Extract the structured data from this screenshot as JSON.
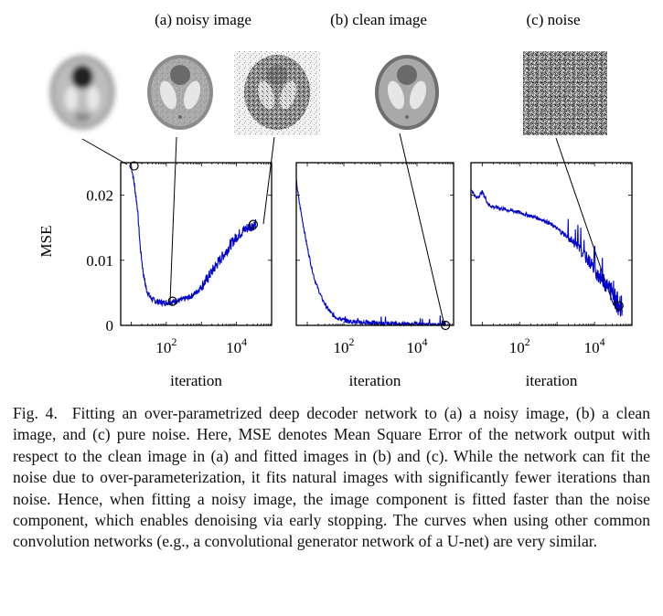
{
  "panel_titles": [
    "(a) noisy image",
    "(b) clean image",
    "(c) noise"
  ],
  "chart_data": {
    "type": "line",
    "xscale": "log",
    "xlim": [
      5,
      100000
    ],
    "ylim": [
      0,
      0.025
    ],
    "ylabel": "MSE",
    "xlabel": "iteration",
    "xtick_labels": [
      {
        "value": 100,
        "label": "10",
        "exponent": "2"
      },
      {
        "value": 10000,
        "label": "10",
        "exponent": "4"
      }
    ],
    "ytick_labels": [
      {
        "value": 0,
        "label": "0"
      },
      {
        "value": 0.01,
        "label": "0.01"
      },
      {
        "value": 0.02,
        "label": "0.02"
      }
    ],
    "line_color": "#0000cc",
    "panels": [
      {
        "name": "noisy image",
        "series_x": [
          10,
          12,
          15,
          18,
          22,
          27,
          33,
          40,
          50,
          60,
          75,
          90,
          110,
          140,
          180,
          230,
          300,
          400,
          550,
          750,
          1000,
          1400,
          2000,
          3000,
          4500,
          7000,
          10000,
          15000,
          22000,
          30000,
          35000
        ],
        "series_y": [
          0.0245,
          0.022,
          0.018,
          0.012,
          0.008,
          0.0055,
          0.0045,
          0.004,
          0.0037,
          0.0036,
          0.0035,
          0.0035,
          0.0035,
          0.0036,
          0.0037,
          0.0038,
          0.004,
          0.0042,
          0.0046,
          0.0052,
          0.006,
          0.007,
          0.0083,
          0.0097,
          0.011,
          0.0125,
          0.0136,
          0.0145,
          0.0151,
          0.0154,
          0.0155
        ],
        "markers": [
          {
            "x": 12,
            "y": 0.0245,
            "links_to": "noisy image reconstruction (early)"
          },
          {
            "x": 150,
            "y": 0.0037,
            "links_to": "noisy image reconstruction (middle)"
          },
          {
            "x": 30000,
            "y": 0.0155,
            "links_to": "noisy image reconstruction (late)"
          }
        ]
      },
      {
        "name": "clean image",
        "series_x": [
          5,
          6,
          8,
          10,
          13,
          16,
          20,
          25,
          30,
          40,
          50,
          70,
          100,
          150,
          250,
          500,
          1000,
          3000,
          10000,
          30000,
          60000
        ],
        "series_y": [
          0.0222,
          0.019,
          0.015,
          0.012,
          0.009,
          0.007,
          0.0055,
          0.0042,
          0.0033,
          0.0022,
          0.0016,
          0.0011,
          0.0008,
          0.0006,
          0.0005,
          0.0004,
          0.0003,
          0.0002,
          0.0001,
          5e-05,
          2e-05
        ],
        "markers": [
          {
            "x": 60000,
            "y": 0.0,
            "links_to": "clean image reconstruction"
          }
        ]
      },
      {
        "name": "noise",
        "series_x": [
          5,
          7,
          10,
          15,
          20,
          30,
          50,
          80,
          120,
          200,
          300,
          500,
          800,
          1200,
          2000,
          3000,
          5000,
          8000,
          12000,
          20000,
          30000,
          40000,
          55000
        ],
        "series_y": [
          0.021,
          0.0195,
          0.0205,
          0.0185,
          0.0182,
          0.018,
          0.0177,
          0.0175,
          0.0172,
          0.0168,
          0.0165,
          0.016,
          0.0153,
          0.0145,
          0.0135,
          0.0125,
          0.011,
          0.0095,
          0.008,
          0.0065,
          0.005,
          0.0035,
          0.0028
        ],
        "markers": [
          {
            "x": 45000,
            "y": 0.003,
            "links_to": "fitted noise"
          }
        ]
      }
    ]
  },
  "caption": {
    "label": "Fig. 4.",
    "text": "Fitting an over-parametrized deep decoder network to (a) a noisy image, (b) a clean image, and (c) pure noise. Here, MSE denotes Mean Square Error of the network output with respect to the clean image in (a) and fitted images in (b) and (c). While the network can fit the noise due to over-parameterization, it fits natural images with significantly fewer iterations than noise. Hence, when fitting a noisy image, the image component is fitted faster than the noise component, which enables denoising via early stopping. The curves when using other common convolution networks (e.g., a convolutional generator network of a U-net) are very similar."
  }
}
